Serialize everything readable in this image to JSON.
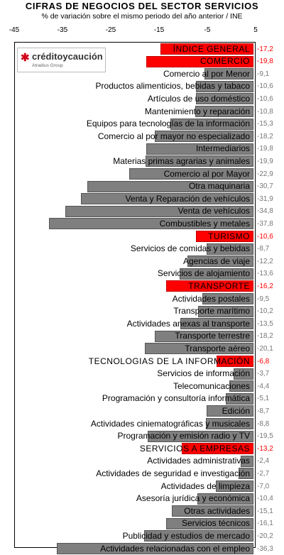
{
  "title": "CIFRAS DE NEGOCIOS DEL SECTOR SERVICIOS",
  "subtitle": "% de variación sobre el mismo periodo del año anterior / INE",
  "logo": {
    "mark": "✱",
    "name": "créditoycaución",
    "sub": "Atradius Group"
  },
  "colors": {
    "normal": "#7f7f7f",
    "highlight": "#ff0000",
    "value_normal": "#777777"
  },
  "chart_data": {
    "type": "bar",
    "orientation": "horizontal",
    "title": "CIFRAS DE NEGOCIOS DEL SECTOR SERVICIOS",
    "subtitle": "% de variación sobre el mismo periodo del año anterior / INE",
    "xlim": [
      -45,
      5
    ],
    "xticks": [
      "-45",
      "-35",
      "-25",
      "-15",
      "-5",
      "5"
    ],
    "grid": false,
    "items": [
      {
        "label": "ÍNDICE GENERAL",
        "value": -17.2,
        "value_label": "-17,2",
        "highlight": true
      },
      {
        "label": "COMERCIO",
        "value": -19.8,
        "value_label": "-19,8",
        "highlight": true
      },
      {
        "label": "Comercio al por Menor",
        "value": -9.1,
        "value_label": "-9,1",
        "highlight": false
      },
      {
        "label": "Productos alimenticios, bebidas y tabaco",
        "value": -10.6,
        "value_label": "-10,6",
        "highlight": false
      },
      {
        "label": "Artículos de uso doméstico",
        "value": -10.6,
        "value_label": "-10,6",
        "highlight": false
      },
      {
        "label": "Mantenimiento y reparación",
        "value": -10.8,
        "value_label": "-10,8",
        "highlight": false
      },
      {
        "label": "Equipos para tecnologías de la información",
        "value": -15.3,
        "value_label": "-15,3",
        "highlight": false
      },
      {
        "label": "Comercio al por mayor no especializado",
        "value": -18.2,
        "value_label": "-18,2",
        "highlight": false
      },
      {
        "label": "Intermediarios",
        "value": -19.8,
        "value_label": "-19,8",
        "highlight": false
      },
      {
        "label": "Materias primas agrarias y animales",
        "value": -19.9,
        "value_label": "-19,9",
        "highlight": false
      },
      {
        "label": "Comercio al por Mayor",
        "value": -22.9,
        "value_label": "-22,9",
        "highlight": false
      },
      {
        "label": "Otra maquinaria",
        "value": -30.7,
        "value_label": "-30,7",
        "highlight": false
      },
      {
        "label": "Venta y Reparación de vehículos",
        "value": -31.9,
        "value_label": "-31,9",
        "highlight": false
      },
      {
        "label": "Venta de vehículos",
        "value": -34.8,
        "value_label": "-34,8",
        "highlight": false
      },
      {
        "label": "Combustibles y metales",
        "value": -37.8,
        "value_label": "-37,8",
        "highlight": false
      },
      {
        "label": "TURISMO",
        "value": -10.6,
        "value_label": "-10,6",
        "highlight": true
      },
      {
        "label": "Servicios de comidas y bebidas",
        "value": -8.7,
        "value_label": "-8,7",
        "highlight": false
      },
      {
        "label": "Agencias de viaje",
        "value": -12.2,
        "value_label": "-12,2",
        "highlight": false
      },
      {
        "label": "Servicios de alojamiento",
        "value": -13.6,
        "value_label": "-13,6",
        "highlight": false
      },
      {
        "label": "TRANSPORTE",
        "value": -16.2,
        "value_label": "-16,2",
        "highlight": true
      },
      {
        "label": "Actividades postales",
        "value": -9.5,
        "value_label": "-9,5",
        "highlight": false
      },
      {
        "label": "Transporte marítimo",
        "value": -10.2,
        "value_label": "-10,2",
        "highlight": false
      },
      {
        "label": "Actividades anexas al transporte",
        "value": -13.5,
        "value_label": "-13,5",
        "highlight": false
      },
      {
        "label": "Transporte terrestre",
        "value": -18.2,
        "value_label": "-18,2",
        "highlight": false
      },
      {
        "label": "Transporte aéreo",
        "value": -20.1,
        "value_label": "-20,1",
        "highlight": false
      },
      {
        "label": "TECNOLOGIAS DE LA INFORMACIÓN",
        "value": -6.8,
        "value_label": "-6,8",
        "highlight": true
      },
      {
        "label": "Servicios de información",
        "value": -3.7,
        "value_label": "-3,7",
        "highlight": false
      },
      {
        "label": "Telecomunicaciones",
        "value": -4.4,
        "value_label": "-4,4",
        "highlight": false
      },
      {
        "label": "Programación y consultoría informática",
        "value": -5.1,
        "value_label": "-5,1",
        "highlight": false
      },
      {
        "label": "Edición",
        "value": -8.7,
        "value_label": "-8,7",
        "highlight": false
      },
      {
        "label": "Actividades ciniematográficas y musicales",
        "value": -8.8,
        "value_label": "-8,8",
        "highlight": false
      },
      {
        "label": "Programación y emisión radio y TV",
        "value": -19.5,
        "value_label": "-19,5",
        "highlight": false
      },
      {
        "label": "SERVICIOS A EMPRESAS",
        "value": -13.2,
        "value_label": "-13,2",
        "highlight": true
      },
      {
        "label": "Actividades administrativas",
        "value": -2.4,
        "value_label": "-2,4",
        "highlight": false
      },
      {
        "label": "Actividades de seguridad e investigación",
        "value": -2.7,
        "value_label": "-2,7",
        "highlight": false
      },
      {
        "label": "Actividades de limpieza",
        "value": -7.0,
        "value_label": "-7,0",
        "highlight": false
      },
      {
        "label": "Asesoría jurídica y económica",
        "value": -10.4,
        "value_label": "-10,4",
        "highlight": false
      },
      {
        "label": "Otras actividades",
        "value": -15.1,
        "value_label": "-15,1",
        "highlight": false
      },
      {
        "label": "Servicios técnicos",
        "value": -16.1,
        "value_label": "-16,1",
        "highlight": false
      },
      {
        "label": "Publicidad y estudios de mercado",
        "value": -20.2,
        "value_label": "-20,2",
        "highlight": false
      },
      {
        "label": "Actividades relacionadas con el empleo",
        "value": -36.3,
        "value_label": "-36,3",
        "highlight": false
      }
    ]
  }
}
